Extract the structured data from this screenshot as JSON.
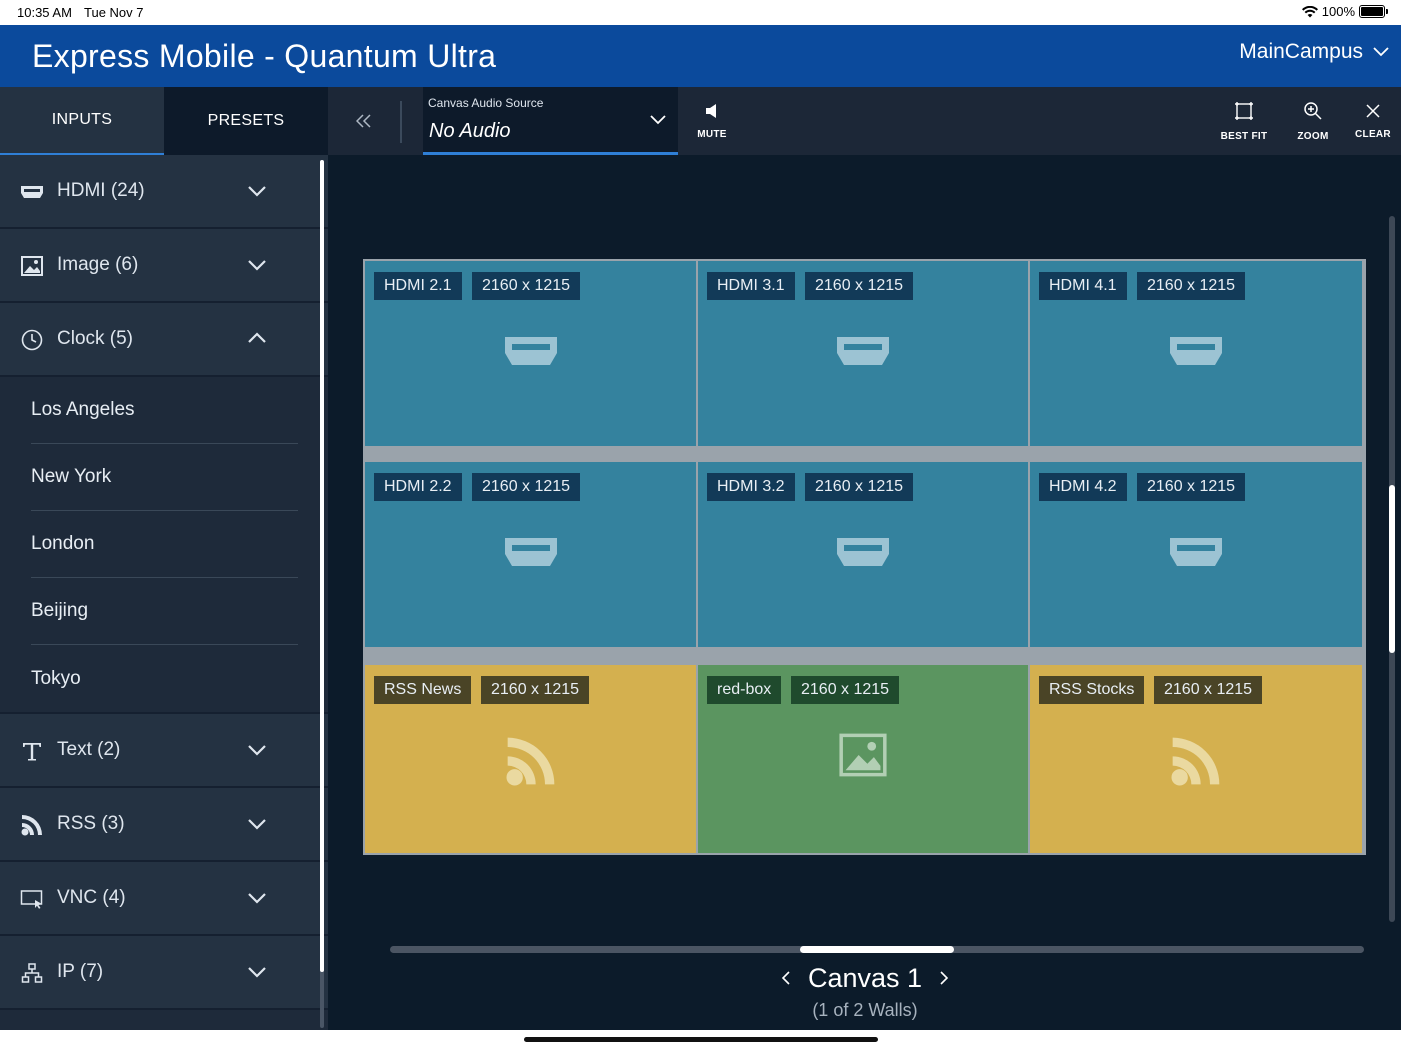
{
  "status_bar": {
    "time": "10:35 AM",
    "date": "Tue Nov 7",
    "battery": "100%"
  },
  "header": {
    "title": "Express Mobile - Quantum Ultra",
    "campus": "MainCampus"
  },
  "sidebar": {
    "tabs": [
      {
        "label": "INPUTS"
      },
      {
        "label": "PRESETS"
      }
    ],
    "categories": [
      {
        "label": "HDMI (24)",
        "icon": "hdmi-icon",
        "expanded": false
      },
      {
        "label": "Image (6)",
        "icon": "image-icon",
        "expanded": false
      },
      {
        "label": "Clock (5)",
        "icon": "clock-icon",
        "expanded": true,
        "items": [
          "Los Angeles",
          "New York",
          "London",
          "Beijing",
          "Tokyo"
        ]
      },
      {
        "label": "Text (2)",
        "icon": "text-icon",
        "expanded": false
      },
      {
        "label": "RSS (3)",
        "icon": "rss-icon",
        "expanded": false
      },
      {
        "label": "VNC (4)",
        "icon": "vnc-icon",
        "expanded": false
      },
      {
        "label": "IP (7)",
        "icon": "network-icon",
        "expanded": false
      }
    ]
  },
  "toolbar": {
    "audio_label": "Canvas Audio Source",
    "audio_value": "No Audio",
    "mute_label": "MUTE",
    "best_fit_label": "BEST FIT",
    "zoom_label": "ZOOM",
    "clear_label": "CLEAR"
  },
  "wall": {
    "cells": [
      {
        "name": "HDMI 2.1",
        "resolution": "2160 x 1215",
        "type": "hdmi"
      },
      {
        "name": "HDMI 3.1",
        "resolution": "2160 x 1215",
        "type": "hdmi"
      },
      {
        "name": "HDMI 4.1",
        "resolution": "2160 x 1215",
        "type": "hdmi"
      },
      {
        "name": "HDMI 2.2",
        "resolution": "2160 x 1215",
        "type": "hdmi"
      },
      {
        "name": "HDMI 3.2",
        "resolution": "2160 x 1215",
        "type": "hdmi"
      },
      {
        "name": "HDMI 4.2",
        "resolution": "2160 x 1215",
        "type": "hdmi"
      },
      {
        "name": "RSS News",
        "resolution": "2160 x 1215",
        "type": "rss"
      },
      {
        "name": "red-box",
        "resolution": "2160 x 1215",
        "type": "image"
      },
      {
        "name": "RSS Stocks",
        "resolution": "2160 x 1215",
        "type": "rss"
      }
    ]
  },
  "canvas": {
    "name": "Canvas 1",
    "walls": "(1 of 2 Walls)"
  },
  "colors": {
    "header": "#0b4a9c",
    "hdmi_cell": "#34829e",
    "rss_cell": "#d4b04f",
    "image_cell": "#5b9560",
    "accent": "#2f7fd6"
  }
}
